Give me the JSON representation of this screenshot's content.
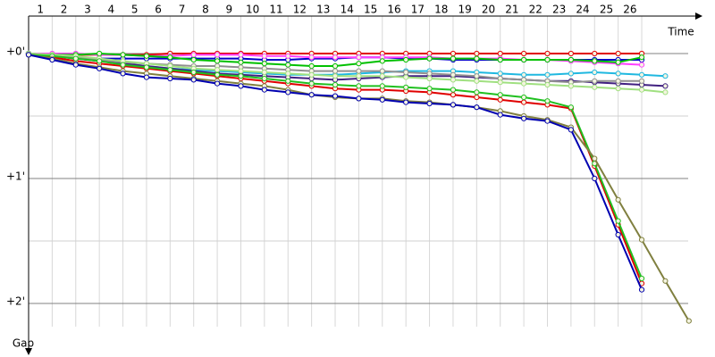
{
  "chart_data": {
    "type": "line",
    "x_label": "Time",
    "y_label": "Gap",
    "categories": [
      "1",
      "2",
      "3",
      "4",
      "5",
      "6",
      "7",
      "8",
      "9",
      "10",
      "11",
      "12",
      "13",
      "14",
      "15",
      "16",
      "17",
      "18",
      "19",
      "20",
      "21",
      "22",
      "23",
      "24",
      "25",
      "26"
    ],
    "x": [
      0,
      1,
      2,
      3,
      4,
      5,
      6,
      7,
      8,
      9,
      10,
      11,
      12,
      13,
      14,
      15,
      16,
      17,
      18,
      19,
      20,
      21,
      22,
      23,
      24,
      25,
      26,
      27,
      28
    ],
    "xlim": [
      0,
      28.5
    ],
    "ylim": [
      -0.3,
      2.4
    ],
    "y_inverted": true,
    "yticks": [
      {
        "value": 0,
        "label": "+0'"
      },
      {
        "value": 1,
        "label": "+1'"
      },
      {
        "value": 2,
        "label": "+2'"
      }
    ],
    "minor_yticks": [
      0.5,
      1.5
    ],
    "grid": true,
    "series": [
      {
        "color": "#e00000",
        "values": [
          0,
          0.01,
          0.01,
          0.01,
          0.01,
          0.01,
          0,
          0,
          0,
          0,
          0,
          0,
          0,
          0,
          0,
          0,
          0,
          0,
          0,
          0,
          0,
          0,
          0,
          0,
          0,
          0,
          0,
          null,
          null
        ]
      },
      {
        "color": "#0000c8",
        "values": [
          0,
          0.02,
          0.03,
          0.04,
          0.04,
          0.04,
          0.04,
          0.04,
          0.04,
          0.04,
          0.05,
          0.05,
          0.04,
          0.04,
          0.03,
          0.03,
          0.04,
          0.04,
          0.05,
          0.05,
          0.05,
          0.05,
          0.05,
          0.05,
          0.05,
          0.05,
          0.05,
          null,
          null
        ]
      },
      {
        "color": "#ff40ff",
        "values": [
          0,
          0,
          0,
          0.01,
          0.01,
          0.02,
          0.02,
          0.01,
          0.01,
          0.01,
          0.02,
          0.02,
          0.03,
          0.03,
          0.03,
          0.03,
          0.03,
          0.03,
          0.04,
          0.04,
          0.04,
          0.05,
          0.05,
          0.06,
          0.07,
          0.08,
          0.09,
          null,
          null
        ]
      },
      {
        "color": "#00c000",
        "values": [
          0,
          0.01,
          0.01,
          0,
          0.01,
          0.02,
          0.03,
          0.05,
          0.06,
          0.07,
          0.08,
          0.09,
          0.1,
          0.1,
          0.08,
          0.06,
          0.05,
          0.04,
          0.04,
          0.04,
          0.05,
          0.05,
          0.05,
          0.05,
          0.06,
          0.07,
          0.03,
          null,
          null
        ]
      },
      {
        "color": "#20b8e0",
        "values": [
          0,
          0.02,
          0.04,
          0.06,
          0.08,
          0.1,
          0.12,
          0.13,
          0.14,
          0.15,
          0.16,
          0.17,
          0.17,
          0.17,
          0.16,
          0.15,
          0.14,
          0.14,
          0.14,
          0.15,
          0.16,
          0.17,
          0.17,
          0.16,
          0.15,
          0.16,
          0.17,
          0.18,
          null
        ]
      },
      {
        "color": "#402080",
        "values": [
          0,
          0.02,
          0.04,
          0.06,
          0.08,
          0.1,
          0.12,
          0.14,
          0.16,
          0.17,
          0.18,
          0.19,
          0.2,
          0.21,
          0.2,
          0.19,
          0.18,
          0.18,
          0.18,
          0.19,
          0.2,
          0.21,
          0.22,
          0.22,
          0.23,
          0.24,
          0.25,
          0.26,
          null
        ]
      },
      {
        "color": "#909090",
        "values": [
          0,
          0.01,
          0.03,
          0.05,
          0.07,
          0.08,
          0.09,
          0.1,
          0.1,
          0.11,
          0.12,
          0.13,
          0.14,
          0.14,
          0.14,
          0.14,
          0.15,
          0.16,
          0.17,
          0.18,
          0.2,
          0.21,
          0.22,
          0.23,
          0.22,
          0.22,
          0.22,
          null,
          null
        ]
      },
      {
        "color": "#a0e080",
        "values": [
          0,
          0.01,
          0.02,
          0.04,
          0.06,
          0.08,
          0.1,
          0.12,
          0.13,
          0.14,
          0.15,
          0.16,
          0.17,
          0.18,
          0.18,
          0.18,
          0.19,
          0.2,
          0.21,
          0.22,
          0.23,
          0.24,
          0.25,
          0.26,
          0.27,
          0.28,
          0.29,
          0.31,
          null
        ]
      },
      {
        "color": "#e00000",
        "values": [
          0.01,
          0.03,
          0.06,
          0.08,
          0.1,
          0.12,
          0.14,
          0.16,
          0.18,
          0.2,
          0.22,
          0.24,
          0.26,
          0.28,
          0.29,
          0.29,
          0.3,
          0.31,
          0.33,
          0.35,
          0.37,
          0.39,
          0.41,
          0.44,
          0.9,
          1.37,
          1.84,
          null,
          null
        ]
      },
      {
        "color": "#20c020",
        "values": [
          0.01,
          0.02,
          0.04,
          0.06,
          0.09,
          0.11,
          0.13,
          0.15,
          0.17,
          0.18,
          0.2,
          0.22,
          0.24,
          0.25,
          0.26,
          0.26,
          0.27,
          0.28,
          0.29,
          0.31,
          0.33,
          0.35,
          0.38,
          0.43,
          0.88,
          1.34,
          1.8,
          null,
          null
        ]
      },
      {
        "color": "#808040",
        "values": [
          0.01,
          0.04,
          0.08,
          0.11,
          0.14,
          0.16,
          0.18,
          0.2,
          0.22,
          0.24,
          0.26,
          0.29,
          0.33,
          0.35,
          0.36,
          0.36,
          0.38,
          0.39,
          0.41,
          0.43,
          0.46,
          0.5,
          0.53,
          0.59,
          0.84,
          1.17,
          1.49,
          1.82,
          2.14
        ]
      },
      {
        "color": "#0000b0",
        "values": [
          0.01,
          0.05,
          0.09,
          0.12,
          0.16,
          0.19,
          0.2,
          0.21,
          0.24,
          0.26,
          0.29,
          0.31,
          0.33,
          0.34,
          0.36,
          0.37,
          0.39,
          0.4,
          0.41,
          0.43,
          0.49,
          0.52,
          0.54,
          0.61,
          1.0,
          1.45,
          1.89,
          null,
          null
        ]
      }
    ]
  }
}
